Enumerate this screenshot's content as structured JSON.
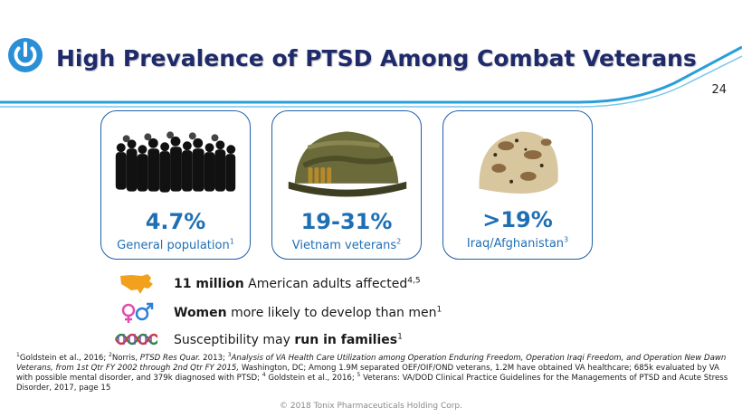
{
  "header": {
    "title": "High Prevalence of PTSD Among Combat Veterans",
    "page_number": "24"
  },
  "cards": [
    {
      "percent": "4.7%",
      "label": "General population",
      "sup": "1",
      "image": "crowd-silhouette"
    },
    {
      "percent": "19-31%",
      "label": "Vietnam veterans",
      "sup": "2",
      "image": "vietnam-helmet"
    },
    {
      "percent": ">19%",
      "label": "Iraq/Afghanistan",
      "sup": "3",
      "image": "desert-helmet"
    }
  ],
  "facts": [
    {
      "bold": "11 million",
      "text": " American adults affected",
      "sup": "4,5",
      "icon": "usa-map-icon"
    },
    {
      "bold": "Women",
      "text": " more likely to develop than men",
      "sup": "1",
      "icon": "gender-symbols-icon"
    },
    {
      "pre": "Susceptibility may ",
      "bold": "run in families",
      "sup": "1",
      "icon": "dna-icon"
    }
  ],
  "footnote": {
    "s1": "1",
    "t1": "Goldstein et al., 2016;  ",
    "s2": "2",
    "t2": "Norris, ",
    "i2": "PTSD Res Quar.",
    "t2b": " 2013;  ",
    "s3": "3",
    "i3": "Analysis of VA Health Care Utilization among Operation Enduring Freedom, Operation Iraqi Freedom, and Operation New Dawn Veterans, from 1st Qtr FY 2002 through 2nd Qtr FY 2015,",
    "t3": " Washington, DC; Among 1.9M separated OEF/OIF/OND veterans, 1.2M have obtained VA healthcare; 685k evaluated by VA with possible mental disorder, and 379k diagnosed with PTSD; ",
    "s4": "4",
    "t4": " Goldstein et al., 2016; ",
    "s5": "5",
    "t5": " Veterans: VA/DOD Clinical Practice Guidelines for the Managements of PTSD and Acute Stress Disorder, 2017, page 15"
  },
  "copyright": "© 2018 Tonix Pharmaceuticals Holding Corp.",
  "colors": {
    "navy": "#1f2a6b",
    "blue": "#1f6fb5",
    "border": "#1f5ea8",
    "rule": "#2a9fd8"
  }
}
